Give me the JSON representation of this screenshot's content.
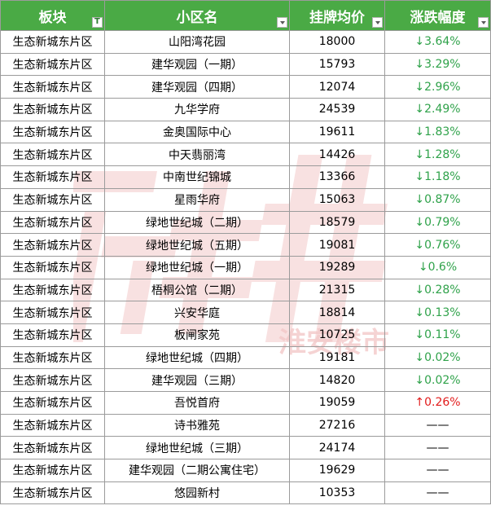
{
  "table": {
    "headers": [
      "板块",
      "小区名",
      "挂牌均价",
      "涨跌幅度"
    ],
    "rows": [
      {
        "district": "生态新城东片区",
        "name": "山阳湾花园",
        "price": "18000",
        "change": "↓3.64%",
        "trend": "down"
      },
      {
        "district": "生态新城东片区",
        "name": "建华观园（一期）",
        "price": "15793",
        "change": "↓3.29%",
        "trend": "down"
      },
      {
        "district": "生态新城东片区",
        "name": "建华观园（四期）",
        "price": "12074",
        "change": "↓2.96%",
        "trend": "down"
      },
      {
        "district": "生态新城东片区",
        "name": "九华学府",
        "price": "24539",
        "change": "↓2.49%",
        "trend": "down"
      },
      {
        "district": "生态新城东片区",
        "name": "金奥国际中心",
        "price": "19611",
        "change": "↓1.83%",
        "trend": "down"
      },
      {
        "district": "生态新城东片区",
        "name": "中天翡丽湾",
        "price": "14426",
        "change": "↓1.28%",
        "trend": "down"
      },
      {
        "district": "生态新城东片区",
        "name": "中南世纪锦城",
        "price": "13366",
        "change": "↓1.18%",
        "trend": "down"
      },
      {
        "district": "生态新城东片区",
        "name": "星雨华府",
        "price": "15063",
        "change": "↓0.87%",
        "trend": "down"
      },
      {
        "district": "生态新城东片区",
        "name": "绿地世纪城（二期）",
        "price": "18579",
        "change": "↓0.79%",
        "trend": "down"
      },
      {
        "district": "生态新城东片区",
        "name": "绿地世纪城（五期）",
        "price": "19081",
        "change": "↓0.76%",
        "trend": "down"
      },
      {
        "district": "生态新城东片区",
        "name": "绿地世纪城（一期）",
        "price": "19289",
        "change": "↓0.6%",
        "trend": "down"
      },
      {
        "district": "生态新城东片区",
        "name": "梧桐公馆（二期）",
        "price": "21315",
        "change": "↓0.28%",
        "trend": "down"
      },
      {
        "district": "生态新城东片区",
        "name": "兴安华庭",
        "price": "18814",
        "change": "↓0.13%",
        "trend": "down"
      },
      {
        "district": "生态新城东片区",
        "name": "板闸家苑",
        "price": "10725",
        "change": "↓0.11%",
        "trend": "down"
      },
      {
        "district": "生态新城东片区",
        "name": "绿地世纪城（四期）",
        "price": "19181",
        "change": "↓0.02%",
        "trend": "down"
      },
      {
        "district": "生态新城东片区",
        "name": "建华观园（三期）",
        "price": "14820",
        "change": "↓0.02%",
        "trend": "down"
      },
      {
        "district": "生态新城东片区",
        "name": "吾悦首府",
        "price": "19059",
        "change": "↑0.26%",
        "trend": "up"
      },
      {
        "district": "生态新城东片区",
        "name": "诗书雅苑",
        "price": "27216",
        "change": "——",
        "trend": "flat"
      },
      {
        "district": "生态新城东片区",
        "name": "绿地世纪城（三期）",
        "price": "24174",
        "change": "——",
        "trend": "flat"
      },
      {
        "district": "生态新城东片区",
        "name": "建华观园（二期公寓住宅）",
        "price": "19629",
        "change": "——",
        "trend": "flat"
      },
      {
        "district": "生态新城东片区",
        "name": "悠园新村",
        "price": "10353",
        "change": "——",
        "trend": "flat"
      }
    ]
  },
  "colors": {
    "header_bg": "#4aaa45",
    "header_text": "#ffffff",
    "down": "#2fa24a",
    "up": "#e21b1b",
    "grid": "#9b9b9b",
    "watermark": "#f3c9c9"
  },
  "watermark": {
    "icon": "logo-watermark-icon",
    "text": "淮安楼市"
  }
}
